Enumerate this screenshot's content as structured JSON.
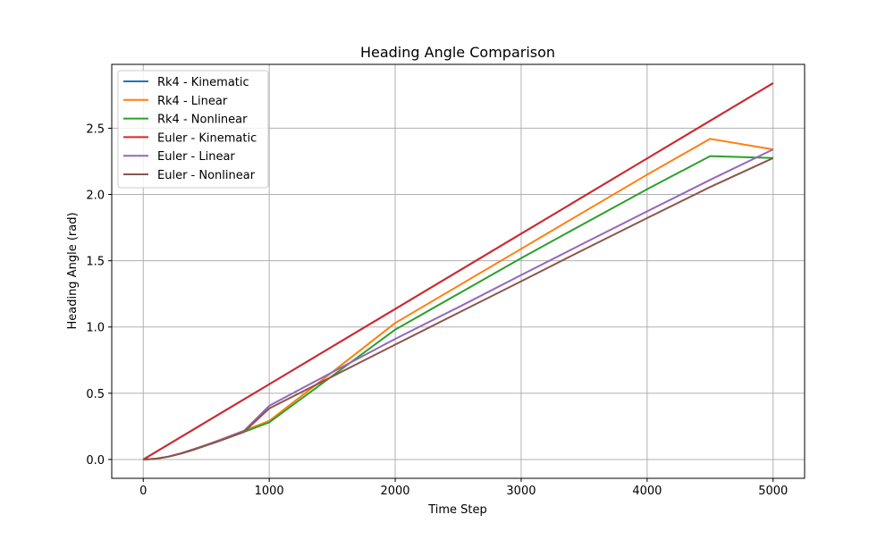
{
  "chart_data": {
    "type": "line",
    "title": "Heading Angle Comparison",
    "xlabel": "Time Step",
    "ylabel": "Heading Angle (rad)",
    "xlim": [
      -250,
      5250
    ],
    "ylim": [
      -0.142,
      2.982
    ],
    "xticks": [
      0,
      1000,
      2000,
      3000,
      4000,
      5000
    ],
    "xtick_labels": [
      "0",
      "1000",
      "2000",
      "3000",
      "4000",
      "5000"
    ],
    "yticks": [
      0.0,
      0.5,
      1.0,
      1.5,
      2.0,
      2.5
    ],
    "ytick_labels": [
      "0.0",
      "0.5",
      "1.0",
      "1.5",
      "2.0",
      "2.5"
    ],
    "grid": true,
    "legend_position": "top-left",
    "series": [
      {
        "name": "Rk4 - Kinematic",
        "color": "#1f77b4",
        "x": [
          0,
          1000,
          2000,
          3000,
          4000,
          5000
        ],
        "y": [
          0.0,
          0.568,
          1.136,
          1.704,
          2.272,
          2.84
        ]
      },
      {
        "name": "Rk4 - Linear",
        "color": "#ff7f0e",
        "x": [
          0,
          100,
          200,
          300,
          400,
          500,
          600,
          800,
          1000,
          1500,
          2000,
          2500,
          3000,
          3500,
          4000,
          4500,
          5000
        ],
        "y": [
          0.0,
          0.006,
          0.022,
          0.047,
          0.077,
          0.11,
          0.144,
          0.217,
          0.291,
          0.659,
          1.03,
          1.31,
          1.59,
          1.87,
          2.15,
          2.42,
          2.34
        ]
      },
      {
        "name": "Rk4 - Nonlinear",
        "color": "#2ca02c",
        "x": [
          0,
          100,
          200,
          300,
          400,
          500,
          600,
          800,
          1000,
          1500,
          2000,
          2500,
          3000,
          3500,
          4000,
          4500,
          5000
        ],
        "y": [
          0.0,
          0.006,
          0.021,
          0.045,
          0.074,
          0.106,
          0.139,
          0.209,
          0.28,
          0.63,
          0.98,
          1.25,
          1.52,
          1.78,
          2.04,
          2.29,
          2.275
        ]
      },
      {
        "name": "Euler - Kinematic",
        "color": "#d62728",
        "x": [
          0,
          1000,
          2000,
          3000,
          4000,
          5000
        ],
        "y": [
          0.0,
          0.568,
          1.136,
          1.704,
          2.272,
          2.84
        ]
      },
      {
        "name": "Euler - Linear",
        "color": "#9467bd",
        "x": [
          0,
          100,
          200,
          300,
          400,
          500,
          600,
          800,
          1000,
          1500,
          2000,
          2500,
          3000,
          3500,
          4000,
          4500,
          5000
        ],
        "y": [
          0.0,
          0.006,
          0.022,
          0.047,
          0.077,
          0.11,
          0.144,
          0.217,
          0.405,
          0.658,
          0.91,
          1.148,
          1.392,
          1.633,
          1.873,
          2.11,
          2.34
        ]
      },
      {
        "name": "Euler - Nonlinear",
        "color": "#8c564b",
        "x": [
          0,
          100,
          200,
          300,
          400,
          500,
          600,
          800,
          1000,
          1500,
          2000,
          2500,
          3000,
          3500,
          4000,
          4500,
          5000
        ],
        "y": [
          0.0,
          0.006,
          0.021,
          0.045,
          0.074,
          0.106,
          0.139,
          0.209,
          0.385,
          0.626,
          0.867,
          1.106,
          1.345,
          1.585,
          1.822,
          2.056,
          2.275
        ]
      }
    ]
  }
}
